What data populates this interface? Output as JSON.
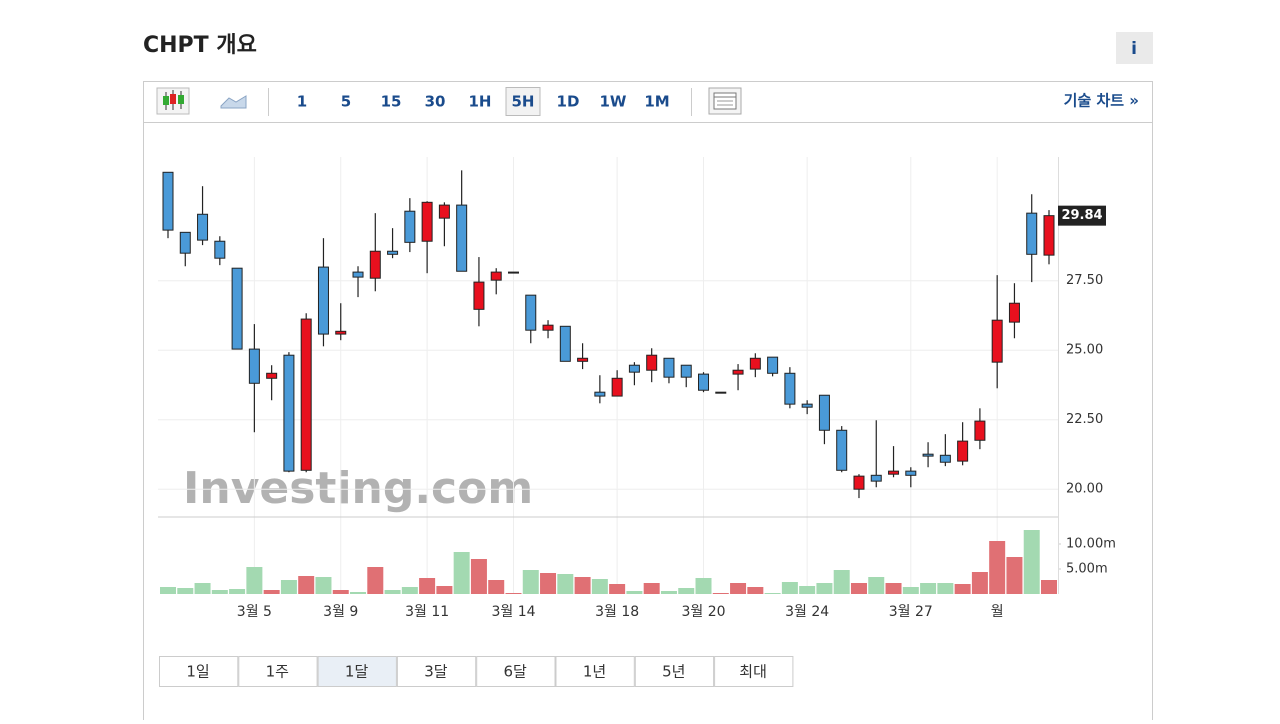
{
  "header": {
    "title": "CHPT 개요",
    "info": "i"
  },
  "toolbar": {
    "intervals": [
      "1",
      "5",
      "15",
      "30",
      "1H",
      "5H",
      "1D",
      "1W",
      "1M"
    ],
    "active_interval": 5,
    "link": "기술 차트 »"
  },
  "ranges": {
    "items": [
      "1일",
      "1주",
      "1달",
      "3달",
      "6달",
      "1년",
      "5년",
      "최대"
    ],
    "active": 2
  },
  "chart_data": {
    "type": "candlestick",
    "watermark": "Investing.com",
    "categories": [
      null,
      null,
      null,
      null,
      null,
      "3월 5",
      null,
      null,
      null,
      null,
      "3월 9",
      null,
      null,
      null,
      null,
      "3월 11",
      null,
      null,
      null,
      null,
      "3월 14",
      null,
      null,
      null,
      null,
      null,
      "3월 18",
      null,
      null,
      null,
      null,
      "3월 20",
      null,
      null,
      null,
      null,
      null,
      "3월 24",
      null,
      null,
      null,
      null,
      null,
      "3월 27",
      null,
      null,
      null,
      null,
      "월",
      null,
      null,
      null
    ],
    "open": [
      31.4,
      29.24,
      29.89,
      28.92,
      27.95,
      25.04,
      23.99,
      24.82,
      20.68,
      27.99,
      25.58,
      27.81,
      27.59,
      28.56,
      30.0,
      28.92,
      29.75,
      30.22,
      26.47,
      27.52,
      27.81,
      26.98,
      25.72,
      25.86,
      24.6,
      23.49,
      23.35,
      24.46,
      24.28,
      24.71,
      24.46,
      24.14,
      23.49,
      24.14,
      24.32,
      24.75,
      24.17,
      23.06,
      23.38,
      22.12,
      20.0,
      20.5,
      20.54,
      20.65,
      21.26,
      21.22,
      21.01,
      21.76,
      24.57,
      26.01,
      29.93,
      28.42
    ],
    "high": [
      31.4,
      29.24,
      30.9,
      29.1,
      27.95,
      25.94,
      24.46,
      24.93,
      26.33,
      29.03,
      26.69,
      28.02,
      29.93,
      29.39,
      30.47,
      30.36,
      30.32,
      31.47,
      28.35,
      27.95,
      27.81,
      26.98,
      26.08,
      25.86,
      25.25,
      24.1,
      24.28,
      24.57,
      25.07,
      24.71,
      24.46,
      24.21,
      23.49,
      24.5,
      24.89,
      24.75,
      24.39,
      23.2,
      23.38,
      22.27,
      20.54,
      22.48,
      21.55,
      20.79,
      21.69,
      21.98,
      22.41,
      22.91,
      27.7,
      27.41,
      30.61,
      30.04
    ],
    "low": [
      29.03,
      28.02,
      28.78,
      28.06,
      25.04,
      22.05,
      23.2,
      20.61,
      20.61,
      25.14,
      25.36,
      26.91,
      27.12,
      28.31,
      28.53,
      27.77,
      28.74,
      27.84,
      25.86,
      27.01,
      27.81,
      25.25,
      25.43,
      24.6,
      24.32,
      23.09,
      23.35,
      23.74,
      23.85,
      23.81,
      23.67,
      23.49,
      23.49,
      23.56,
      24.03,
      24.06,
      22.91,
      22.7,
      21.62,
      20.61,
      19.68,
      20.07,
      20.43,
      20.07,
      20.79,
      20.83,
      20.86,
      21.44,
      23.63,
      25.43,
      27.45,
      28.09
    ],
    "close": [
      29.32,
      28.49,
      28.96,
      28.31,
      25.04,
      23.81,
      24.17,
      20.65,
      26.12,
      25.58,
      25.68,
      27.63,
      28.56,
      28.45,
      28.88,
      30.32,
      30.22,
      27.84,
      27.45,
      27.81,
      27.81,
      25.72,
      25.9,
      24.6,
      24.71,
      23.35,
      23.99,
      24.21,
      24.82,
      24.03,
      24.03,
      23.56,
      23.49,
      24.28,
      24.71,
      24.17,
      23.06,
      22.95,
      22.12,
      20.68,
      20.47,
      20.29,
      20.65,
      20.5,
      21.19,
      20.97,
      21.73,
      22.45,
      26.08,
      26.69,
      28.45,
      29.84
    ],
    "up_color": "#e8101e",
    "down_color": "#4a9ad8",
    "ylim": [
      19.0,
      31.95
    ],
    "yticks": [
      {
        "value": 20,
        "label": "20.00"
      },
      {
        "value": 22.5,
        "label": "22.50"
      },
      {
        "value": 25,
        "label": "25.00"
      },
      {
        "value": 27.5,
        "label": "27.50"
      }
    ],
    "grid": true,
    "volume": {
      "values": [
        1.4,
        1.2,
        2.2,
        0.8,
        1.0,
        5.4,
        0.8,
        2.8,
        3.6,
        3.4,
        0.8,
        0.4,
        5.4,
        0.8,
        1.4,
        3.2,
        1.6,
        8.4,
        7.0,
        2.8,
        0.2,
        4.8,
        4.2,
        4.0,
        3.4,
        3.0,
        2.0,
        0.6,
        2.2,
        0.6,
        1.2,
        3.2,
        0.2,
        2.2,
        1.4,
        0.2,
        2.4,
        1.6,
        2.2,
        4.8,
        2.2,
        3.4,
        2.2,
        1.4,
        2.2,
        2.2,
        2.0,
        4.4,
        10.6,
        7.4,
        12.8,
        2.8
      ],
      "up_color": "#e07074",
      "down_color": "#a3d9b1",
      "ylim": [
        0,
        15.4
      ],
      "yticks": [
        {
          "value": 5,
          "label": "5.00m"
        },
        {
          "value": 10,
          "label": "10.00m"
        }
      ]
    }
  }
}
